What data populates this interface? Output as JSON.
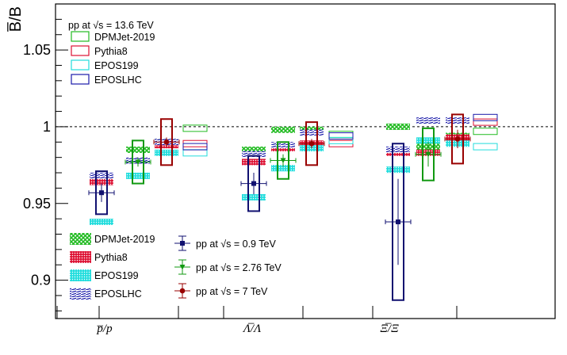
{
  "colors": {
    "dpmjet": "#22bb22",
    "pythia": "#dd1133",
    "epos199": "#22dddd",
    "eposlhc": "#1a1aaa",
    "data_09": "#101070",
    "data_276": "#119911",
    "data_7": "#990000"
  },
  "chart_data": {
    "type": "scatter",
    "ylabel": "B̅/B",
    "ylim": [
      0.875,
      1.08
    ],
    "yticks": [
      "0.9",
      "0.95",
      "1",
      "1.05"
    ],
    "ytick_values": [
      0.9,
      0.95,
      1.0,
      1.05
    ],
    "reference_line": 1.0,
    "categories": [
      "p̅/p",
      "Λ̅/Λ",
      "Ξ̅/Ξ"
    ],
    "legend_top_title": "pp at √s = 13.6 TeV",
    "legend_top": [
      "DPMJet-2019",
      "Pythia8",
      "EPOS199",
      "EPOSLHC"
    ],
    "legend_bottom_models": [
      "DPMJet-2019",
      "Pythia8",
      "EPOS199",
      "EPOSLHC"
    ],
    "legend_bottom_data": [
      "pp at √s = 0.9 TeV",
      "pp at √s = 2.76 TeV",
      "pp at √s = 7 TeV"
    ],
    "data": [
      {
        "energy": "0.9 TeV",
        "values": [
          0.957,
          0.963,
          0.938
        ],
        "stat": [
          0.006,
          0.007,
          0.028
        ],
        "syst": [
          0.014,
          0.018,
          0.051
        ]
      },
      {
        "energy": "2.76 TeV",
        "values": [
          0.977,
          0.978,
          0.982
        ],
        "stat": [
          0.003,
          0.004,
          0.008
        ],
        "syst": [
          0.014,
          0.012,
          0.017
        ]
      },
      {
        "energy": "7 TeV",
        "values": [
          0.99,
          0.989,
          0.992
        ],
        "stat": [
          0.003,
          0.003,
          0.006
        ],
        "syst": [
          0.015,
          0.014,
          0.016
        ]
      }
    ],
    "models": [
      {
        "model": "DPMJet-2019",
        "energy": "0.9 TeV",
        "values": [
          0.965,
          0.985,
          1.0
        ]
      },
      {
        "model": "Pythia8",
        "energy": "0.9 TeV",
        "values": [
          0.964,
          0.977,
          0.983
        ]
      },
      {
        "model": "EPOS199",
        "energy": "0.9 TeV",
        "values": [
          0.938,
          0.954,
          0.972
        ]
      },
      {
        "model": "EPOSLHC",
        "energy": "0.9 TeV",
        "values": [
          0.968,
          0.982,
          0.985
        ]
      },
      {
        "model": "DPMJet-2019",
        "energy": "2.76 TeV",
        "values": [
          0.985,
          0.998,
          0.987
        ]
      },
      {
        "model": "Pythia8",
        "energy": "2.76 TeV",
        "values": [
          0.978,
          0.986,
          0.983
        ]
      },
      {
        "model": "EPOS199",
        "energy": "2.76 TeV",
        "values": [
          0.968,
          0.973,
          0.991
        ]
      },
      {
        "model": "EPOSLHC",
        "energy": "2.76 TeV",
        "values": [
          0.978,
          0.988,
          1.004
        ]
      },
      {
        "model": "DPMJet-2019",
        "energy": "7 TeV",
        "values": [
          0.99,
          0.998,
          0.994
        ]
      },
      {
        "model": "Pythia8",
        "energy": "7 TeV",
        "values": [
          0.988,
          0.989,
          0.993
        ]
      },
      {
        "model": "EPOS199",
        "energy": "7 TeV",
        "values": [
          0.983,
          0.986,
          0.989
        ]
      },
      {
        "model": "EPOSLHC",
        "energy": "7 TeV",
        "values": [
          0.99,
          0.996,
          1.004
        ]
      },
      {
        "model": "DPMJet-2019",
        "energy": "13.6 TeV",
        "values": [
          0.999,
          0.995,
          0.997
        ]
      },
      {
        "model": "Pythia8",
        "energy": "13.6 TeV",
        "values": [
          0.989,
          0.989,
          1.003
        ]
      },
      {
        "model": "EPOS199",
        "energy": "13.6 TeV",
        "values": [
          0.983,
          0.991,
          0.987
        ]
      },
      {
        "model": "EPOSLHC",
        "energy": "13.6 TeV",
        "values": [
          0.987,
          0.994,
          1.006
        ]
      }
    ]
  }
}
